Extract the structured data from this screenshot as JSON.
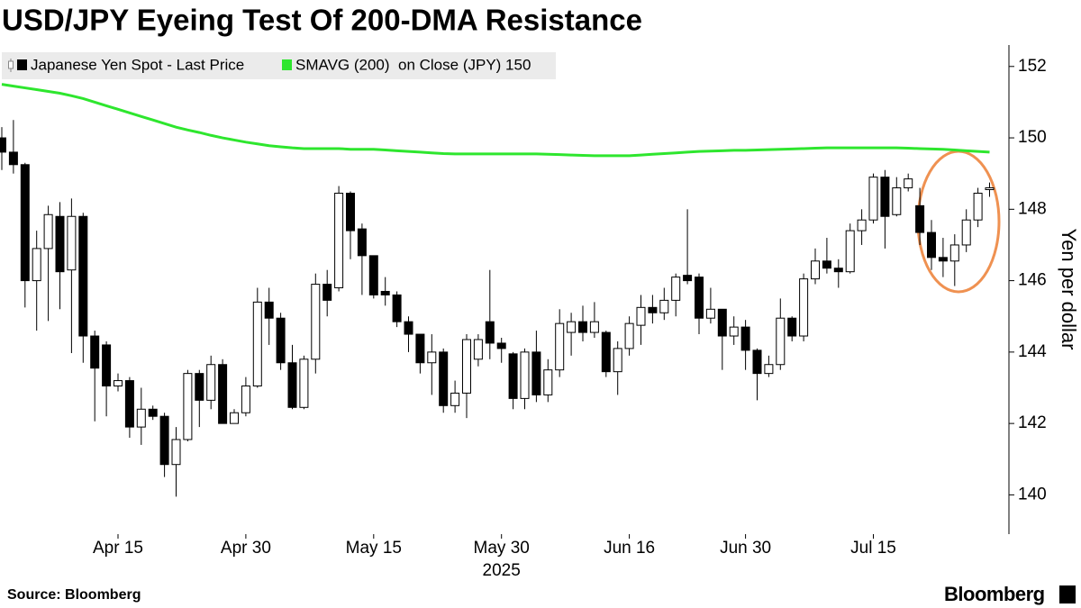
{
  "chart_data": {
    "type": "candlestick",
    "title": "USD/JPY Eyeing Test Of 200-DMA Resistance",
    "source": "Source: Bloomberg",
    "brand": "Bloomberg",
    "ylabel": "Yen per dollar",
    "xlabel": "2025",
    "categories": [
      "2025-04-01",
      "2025-04-02",
      "2025-04-03",
      "2025-04-04",
      "2025-04-07",
      "2025-04-08",
      "2025-04-09",
      "2025-04-10",
      "2025-04-11",
      "2025-04-14",
      "2025-04-15",
      "2025-04-16",
      "2025-04-17",
      "2025-04-18",
      "2025-04-21",
      "2025-04-22",
      "2025-04-23",
      "2025-04-24",
      "2025-04-25",
      "2025-04-28",
      "2025-04-29",
      "2025-04-30",
      "2025-05-01",
      "2025-05-02",
      "2025-05-05",
      "2025-05-06",
      "2025-05-07",
      "2025-05-08",
      "2025-05-09",
      "2025-05-12",
      "2025-05-13",
      "2025-05-14",
      "2025-05-15",
      "2025-05-16",
      "2025-05-19",
      "2025-05-20",
      "2025-05-21",
      "2025-05-22",
      "2025-05-23",
      "2025-05-26",
      "2025-05-27",
      "2025-05-28",
      "2025-05-29",
      "2025-05-30",
      "2025-06-02",
      "2025-06-03",
      "2025-06-04",
      "2025-06-05",
      "2025-06-06",
      "2025-06-09",
      "2025-06-10",
      "2025-06-11",
      "2025-06-12",
      "2025-06-13",
      "2025-06-16",
      "2025-06-17",
      "2025-06-18",
      "2025-06-19",
      "2025-06-20",
      "2025-06-23",
      "2025-06-24",
      "2025-06-25",
      "2025-06-26",
      "2025-06-27",
      "2025-06-30",
      "2025-07-01",
      "2025-07-02",
      "2025-07-03",
      "2025-07-04",
      "2025-07-07",
      "2025-07-08",
      "2025-07-09",
      "2025-07-10",
      "2025-07-11",
      "2025-07-14",
      "2025-07-15",
      "2025-07-16",
      "2025-07-17",
      "2025-07-18",
      "2025-07-21",
      "2025-07-22",
      "2025-07-23",
      "2025-07-24",
      "2025-07-25",
      "2025-07-28",
      "2025-07-29"
    ],
    "series": [
      {
        "name": "Japanese Yen Spot - Last Price",
        "type": "candlestick",
        "color": "#000000",
        "up_color": "#ffffff",
        "open": [
          150.0,
          149.6,
          149.25,
          146.0,
          146.9,
          147.8,
          146.3,
          147.8,
          144.45,
          144.2,
          143.05,
          143.2,
          141.9,
          142.4,
          142.2,
          140.85,
          141.55,
          143.4,
          142.65,
          143.65,
          142.0,
          142.3,
          143.05,
          145.4,
          144.95,
          143.7,
          142.45,
          143.8,
          145.9,
          145.8,
          148.45,
          147.45,
          146.7,
          145.7,
          145.6,
          144.85,
          144.5,
          143.7,
          144.0,
          142.5,
          142.85,
          143.8,
          144.85,
          144.25,
          143.95,
          142.7,
          144.0,
          142.8,
          143.5,
          144.55,
          144.85,
          144.55,
          144.55,
          143.45,
          144.1,
          144.75,
          145.25,
          145.1,
          145.45,
          146.15,
          146.1,
          144.95,
          145.2,
          144.45,
          144.7,
          144.05,
          143.4,
          143.65,
          144.95,
          144.45,
          146.05,
          146.55,
          146.35,
          146.25,
          147.4,
          147.7,
          148.9,
          147.85,
          148.6,
          148.1,
          147.35,
          146.65,
          146.55,
          147.0,
          147.7,
          148.55
        ],
        "high": [
          150.3,
          150.5,
          149.3,
          147.4,
          148.1,
          148.2,
          148.3,
          147.9,
          144.6,
          144.3,
          143.4,
          143.3,
          143.0,
          142.5,
          142.3,
          141.9,
          143.5,
          143.5,
          143.9,
          143.8,
          142.4,
          143.3,
          145.8,
          145.8,
          145.1,
          144.2,
          143.9,
          146.2,
          146.3,
          148.65,
          148.5,
          147.6,
          146.7,
          146.1,
          145.7,
          145.0,
          144.5,
          144.5,
          144.1,
          143.2,
          144.5,
          144.5,
          146.3,
          144.4,
          144.0,
          144.1,
          144.6,
          143.8,
          145.2,
          145.1,
          145.3,
          145.4,
          144.6,
          144.3,
          145.0,
          145.6,
          145.6,
          145.8,
          146.2,
          148.0,
          146.2,
          145.8,
          145.2,
          145.0,
          144.9,
          144.1,
          143.9,
          145.5,
          145.0,
          146.2,
          146.9,
          147.2,
          146.6,
          147.6,
          148.0,
          149.0,
          149.1,
          148.9,
          149.0,
          148.6,
          147.7,
          147.2,
          147.3,
          148.0,
          148.6,
          148.75
        ],
        "low": [
          149.1,
          149.0,
          145.25,
          144.6,
          144.87,
          145.2,
          143.97,
          143.7,
          142.06,
          142.2,
          142.9,
          141.6,
          141.4,
          142.1,
          140.5,
          139.95,
          141.5,
          141.9,
          142.4,
          142.0,
          142.0,
          142.2,
          143.0,
          144.2,
          143.5,
          142.4,
          142.4,
          143.4,
          145.0,
          145.7,
          146.6,
          145.6,
          145.5,
          145.3,
          144.7,
          144.0,
          143.4,
          142.8,
          142.3,
          142.3,
          142.15,
          143.6,
          143.8,
          143.7,
          142.4,
          142.4,
          142.6,
          142.6,
          143.3,
          143.9,
          144.3,
          144.4,
          143.3,
          142.8,
          143.9,
          144.2,
          144.8,
          144.9,
          145.0,
          145.9,
          144.5,
          144.8,
          143.5,
          144.2,
          143.5,
          142.65,
          143.3,
          143.5,
          144.3,
          144.3,
          145.9,
          146.2,
          145.8,
          146.2,
          147.0,
          147.6,
          146.9,
          147.8,
          148.5,
          147.0,
          146.3,
          146.1,
          145.85,
          146.8,
          147.5,
          148.35
        ],
        "close": [
          149.6,
          149.25,
          146.0,
          146.9,
          147.85,
          146.25,
          147.8,
          144.45,
          143.55,
          143.05,
          143.2,
          141.9,
          142.4,
          142.2,
          140.85,
          141.55,
          143.4,
          142.65,
          143.65,
          142.0,
          142.3,
          143.05,
          145.4,
          144.95,
          143.7,
          142.45,
          143.8,
          145.9,
          145.45,
          148.45,
          147.4,
          146.7,
          145.6,
          145.6,
          144.85,
          144.5,
          143.7,
          144.0,
          142.5,
          142.85,
          144.35,
          144.35,
          144.25,
          144.1,
          142.7,
          144.0,
          142.8,
          143.5,
          144.8,
          144.85,
          144.55,
          144.85,
          143.45,
          144.1,
          144.8,
          145.25,
          145.1,
          145.45,
          146.1,
          146.0,
          144.95,
          145.2,
          144.45,
          144.7,
          144.05,
          143.4,
          143.65,
          144.95,
          144.45,
          146.05,
          146.55,
          146.35,
          146.25,
          147.4,
          147.7,
          148.9,
          147.8,
          148.6,
          148.85,
          147.35,
          146.65,
          146.55,
          147.0,
          147.7,
          148.45,
          148.6
        ]
      },
      {
        "name": "SMAVG (200)  on Close (JPY) 150",
        "type": "line",
        "color": "#2ee62e",
        "values": [
          151.5,
          151.45,
          151.4,
          151.35,
          151.3,
          151.25,
          151.18,
          151.1,
          151.0,
          150.9,
          150.8,
          150.7,
          150.6,
          150.5,
          150.4,
          150.3,
          150.22,
          150.15,
          150.07,
          150.0,
          149.94,
          149.88,
          149.83,
          149.78,
          149.75,
          149.72,
          149.7,
          149.7,
          149.7,
          149.7,
          149.68,
          149.68,
          149.68,
          149.66,
          149.64,
          149.62,
          149.6,
          149.58,
          149.56,
          149.55,
          149.55,
          149.55,
          149.55,
          149.55,
          149.55,
          149.55,
          149.55,
          149.54,
          149.53,
          149.52,
          149.51,
          149.5,
          149.5,
          149.5,
          149.5,
          149.52,
          149.54,
          149.56,
          149.58,
          149.6,
          149.62,
          149.63,
          149.64,
          149.65,
          149.65,
          149.66,
          149.67,
          149.68,
          149.69,
          149.7,
          149.71,
          149.72,
          149.72,
          149.72,
          149.72,
          149.72,
          149.72,
          149.72,
          149.71,
          149.7,
          149.69,
          149.68,
          149.66,
          149.64,
          149.62,
          149.6
        ]
      }
    ],
    "ylim": [
      138.9,
      152.6
    ],
    "yticks": [
      140,
      142,
      144,
      146,
      148,
      150,
      152
    ],
    "xticks": [
      {
        "value": "2025-04-15",
        "label": "Apr 15"
      },
      {
        "value": "2025-04-30",
        "label": "Apr 30"
      },
      {
        "value": "2025-05-15",
        "label": "May 15"
      },
      {
        "value": "2025-05-30",
        "label": "May 30"
      },
      {
        "value": "2025-06-16",
        "label": "Jun 16"
      },
      {
        "value": "2025-06-30",
        "label": "Jun 30"
      },
      {
        "value": "2025-07-15",
        "label": "Jul 15"
      }
    ],
    "grid": false
  }
}
